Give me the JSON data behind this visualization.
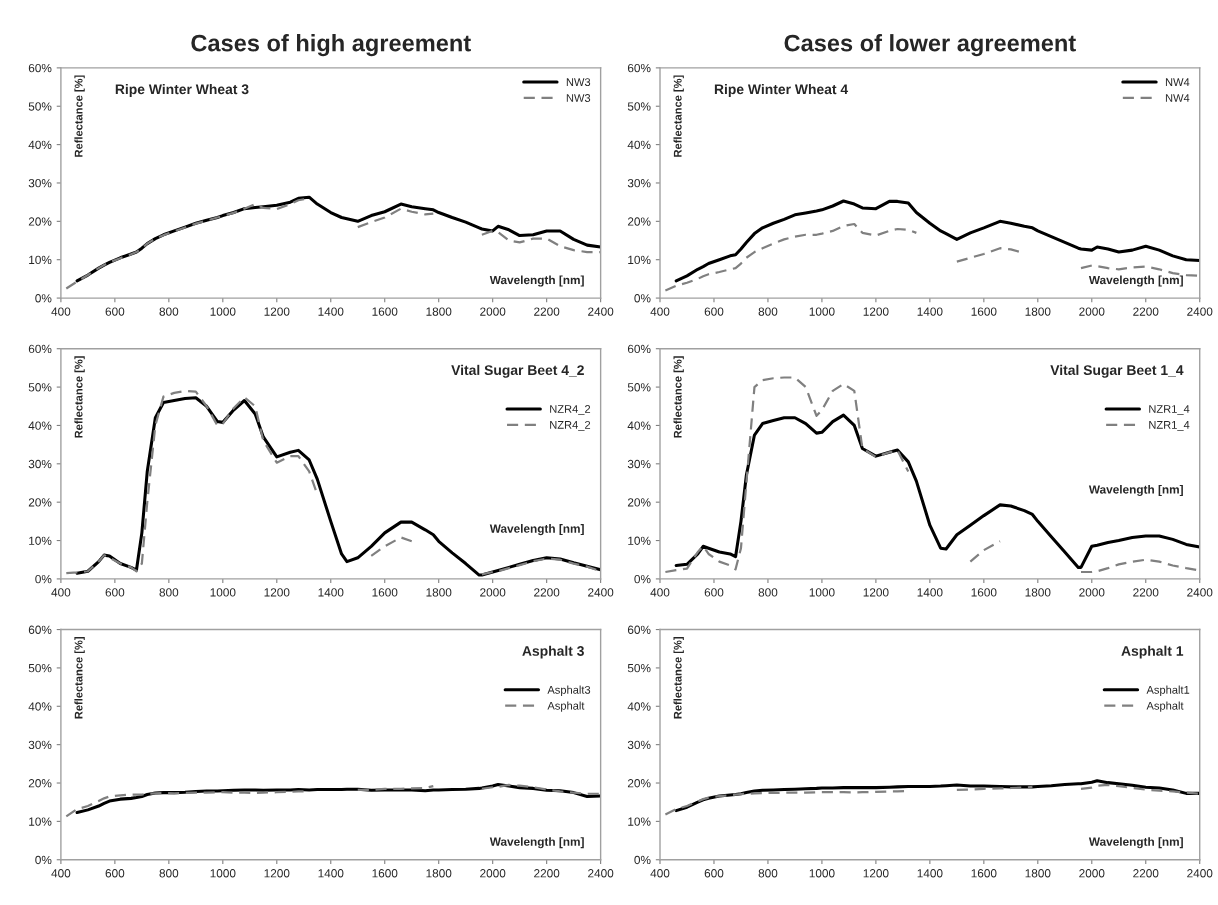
{
  "chart_data": [
    {
      "type": "line",
      "title": "Cases of high agreement",
      "subtitle": "Ripe Winter Wheat 3",
      "xlabel": "Wavelength [nm]",
      "ylabel": "Reflectance [%]",
      "legend": "top right",
      "grid": false,
      "xlim": [
        400,
        2400
      ],
      "ylim": [
        0,
        60
      ],
      "xticks": [
        400,
        600,
        800,
        1000,
        1200,
        1400,
        1600,
        1800,
        2000,
        2200,
        2400
      ],
      "yticks": [
        {
          "value": 0,
          "label": "0%"
        },
        {
          "value": 10,
          "label": "10%"
        },
        {
          "value": 20,
          "label": "20%"
        },
        {
          "value": 30,
          "label": "30%"
        },
        {
          "value": 40,
          "label": "40%"
        },
        {
          "value": 50,
          "label": "50%"
        },
        {
          "value": 60,
          "label": "60%"
        }
      ],
      "x": [
        420,
        460,
        500,
        540,
        560,
        580,
        620,
        660,
        680,
        700,
        720,
        750,
        780,
        820,
        860,
        900,
        940,
        980,
        1000,
        1040,
        1080,
        1120,
        1150,
        1200,
        1250,
        1280,
        1320,
        1350,
        1400,
        1440,
        1460,
        1500,
        1550,
        1600,
        1660,
        1700,
        1750,
        1780,
        1800,
        1850,
        1900,
        1950,
        1960,
        2000,
        2020,
        2060,
        2100,
        2150,
        2200,
        2250,
        2300,
        2350,
        2400
      ],
      "series": [
        {
          "name": "NW3",
          "color": "#000000",
          "line_style": "solid",
          "values": [
            null,
            4.5,
            6,
            7.8,
            8.6,
            9.3,
            10.5,
            11.5,
            12,
            13,
            14.2,
            15.5,
            16.5,
            17.5,
            18.5,
            19.5,
            20.3,
            21,
            21.5,
            22.3,
            23.3,
            23.6,
            23.8,
            24.2,
            25,
            26,
            26.3,
            24.5,
            22.3,
            21,
            20.7,
            20,
            21.5,
            22.5,
            24.5,
            23.8,
            23.3,
            23,
            22.3,
            21,
            19.8,
            18.3,
            18,
            17.5,
            18.7,
            17.8,
            16.3,
            16.5,
            17.5,
            17.5,
            15.3,
            13.8,
            13.3
          ]
        },
        {
          "name": "NW3",
          "color": "#808080",
          "line_style": "dashed",
          "values": [
            2.5,
            4.3,
            6,
            7.8,
            8.6,
            9.3,
            10.4,
            11.4,
            12,
            13,
            14.2,
            15.5,
            16.4,
            17.4,
            18.4,
            19.4,
            20.2,
            21,
            21.4,
            22.2,
            23.3,
            24.5,
            23.5,
            23.2,
            24.5,
            25.5,
            26,
            null,
            null,
            null,
            null,
            18.5,
            19.8,
            21,
            23.3,
            22.5,
            21.8,
            22,
            null,
            null,
            null,
            null,
            16.5,
            17.5,
            17.2,
            15,
            14.5,
            15.5,
            15.5,
            13.5,
            12.5,
            12,
            12
          ]
        }
      ]
    },
    {
      "type": "line",
      "title": "Cases of lower agreement",
      "subtitle": "Ripe Winter Wheat 4",
      "xlabel": "Wavelength [nm]",
      "ylabel": "Reflectance [%]",
      "legend": "top right",
      "grid": false,
      "xlim": [
        400,
        2400
      ],
      "ylim": [
        0,
        60
      ],
      "xticks": [
        400,
        600,
        800,
        1000,
        1200,
        1400,
        1600,
        1800,
        2000,
        2200,
        2400
      ],
      "yticks": [
        {
          "value": 0,
          "label": "0%"
        },
        {
          "value": 10,
          "label": "10%"
        },
        {
          "value": 20,
          "label": "20%"
        },
        {
          "value": 30,
          "label": "30%"
        },
        {
          "value": 40,
          "label": "40%"
        },
        {
          "value": 50,
          "label": "50%"
        },
        {
          "value": 60,
          "label": "60%"
        }
      ],
      "x": [
        420,
        460,
        500,
        540,
        560,
        580,
        620,
        660,
        680,
        700,
        720,
        750,
        780,
        820,
        860,
        900,
        940,
        980,
        1000,
        1040,
        1080,
        1120,
        1150,
        1200,
        1250,
        1280,
        1320,
        1350,
        1400,
        1440,
        1460,
        1500,
        1550,
        1600,
        1660,
        1700,
        1750,
        1780,
        1800,
        1850,
        1900,
        1950,
        1960,
        2000,
        2020,
        2060,
        2100,
        2150,
        2200,
        2250,
        2300,
        2350,
        2400
      ],
      "series": [
        {
          "name": "NW4",
          "color": "#000000",
          "line_style": "solid",
          "values": [
            null,
            4.5,
            5.8,
            7.5,
            8.2,
            9,
            10,
            11,
            11.3,
            12.8,
            14.5,
            16.8,
            18.3,
            19.5,
            20.5,
            21.7,
            22.2,
            22.7,
            23,
            24,
            25.3,
            24.5,
            23.5,
            23.3,
            25.2,
            25.2,
            24.8,
            22.3,
            19.5,
            17.5,
            16.8,
            15.3,
            17,
            18.3,
            20,
            19.5,
            18.7,
            18.3,
            17.5,
            16,
            14.5,
            13,
            12.8,
            12.5,
            13.3,
            12.8,
            12,
            12.5,
            13.5,
            12.5,
            11,
            10,
            9.8
          ]
        },
        {
          "name": "NW4",
          "color": "#808080",
          "line_style": "dashed",
          "values": [
            2,
            3.2,
            4,
            5,
            5.7,
            6.2,
            6.8,
            7.5,
            7.8,
            9,
            10.5,
            12,
            13,
            14.2,
            15.3,
            16,
            16.5,
            16.5,
            16.8,
            17.5,
            18.8,
            19.3,
            17,
            16.3,
            17.5,
            18,
            17.8,
            17,
            null,
            null,
            null,
            9.5,
            10.5,
            11.5,
            13,
            12.7,
            11.7,
            null,
            null,
            null,
            null,
            null,
            7.8,
            8.5,
            8.3,
            7.8,
            7.5,
            8,
            8.2,
            7.5,
            6.5,
            6,
            5.8
          ]
        }
      ]
    },
    {
      "type": "line",
      "subtitle": "Vital Sugar Beet 4_2",
      "xlabel": "Wavelength [nm]",
      "ylabel": "Reflectance [%]",
      "legend": "right",
      "grid": false,
      "xlim": [
        400,
        2400
      ],
      "ylim": [
        0,
        60
      ],
      "xticks": [
        400,
        600,
        800,
        1000,
        1200,
        1400,
        1600,
        1800,
        2000,
        2200,
        2400
      ],
      "yticks": [
        {
          "value": 0,
          "label": "0%"
        },
        {
          "value": 10,
          "label": "10%"
        },
        {
          "value": 20,
          "label": "20%"
        },
        {
          "value": 30,
          "label": "30%"
        },
        {
          "value": 40,
          "label": "40%"
        },
        {
          "value": 50,
          "label": "50%"
        },
        {
          "value": 60,
          "label": "60%"
        }
      ],
      "x": [
        420,
        460,
        500,
        540,
        560,
        580,
        620,
        660,
        680,
        700,
        720,
        750,
        780,
        820,
        860,
        900,
        940,
        980,
        1000,
        1040,
        1080,
        1120,
        1150,
        1200,
        1250,
        1280,
        1320,
        1350,
        1400,
        1440,
        1460,
        1500,
        1550,
        1600,
        1660,
        1700,
        1750,
        1780,
        1800,
        1850,
        1900,
        1950,
        1960,
        2000,
        2020,
        2060,
        2100,
        2150,
        2200,
        2250,
        2300,
        2350,
        2400
      ],
      "series": [
        {
          "name": "NZR4_2",
          "color": "#000000",
          "line_style": "solid",
          "values": [
            null,
            1.5,
            2,
            4.5,
            6.2,
            6,
            4,
            3,
            2.3,
            12,
            28,
            42,
            46,
            46.5,
            47,
            47.2,
            45,
            41,
            40.8,
            44,
            46.5,
            43,
            37,
            31.8,
            33,
            33.5,
            31,
            26,
            15,
            6.5,
            4.5,
            5.5,
            8.5,
            12,
            14.8,
            14.8,
            12.8,
            11.5,
            9.8,
            6.8,
            4,
            1,
            1,
            1.8,
            2.2,
            3,
            3.8,
            4.8,
            5.5,
            5.2,
            4.2,
            3.3,
            2.4
          ]
        },
        {
          "name": "NZR4_2",
          "color": "#808080",
          "line_style": "dashed",
          "values": [
            1.5,
            1.7,
            2,
            4.5,
            6.2,
            5.5,
            4,
            3,
            2,
            4,
            20,
            40,
            47.5,
            48.5,
            49,
            48.8,
            45,
            40,
            40.5,
            44.5,
            47.3,
            45,
            36,
            30.3,
            32,
            32,
            28,
            22,
            null,
            null,
            null,
            null,
            6,
            8.5,
            10.8,
            9.8,
            null,
            null,
            null,
            null,
            null,
            null,
            1.2,
            1.8,
            2,
            2.8,
            3.6,
            4.6,
            5.3,
            5,
            4,
            3.2,
            2
          ]
        }
      ]
    },
    {
      "type": "line",
      "subtitle": "Vital Sugar Beet 1_4",
      "xlabel": "Wavelength [nm]",
      "ylabel": "Reflectance [%]",
      "legend": "right",
      "grid": false,
      "xlim": [
        400,
        2400
      ],
      "ylim": [
        0,
        60
      ],
      "xticks": [
        400,
        600,
        800,
        1000,
        1200,
        1400,
        1600,
        1800,
        2000,
        2200,
        2400
      ],
      "yticks": [
        {
          "value": 0,
          "label": "0%"
        },
        {
          "value": 10,
          "label": "10%"
        },
        {
          "value": 20,
          "label": "20%"
        },
        {
          "value": 30,
          "label": "30%"
        },
        {
          "value": 40,
          "label": "40%"
        },
        {
          "value": 50,
          "label": "50%"
        },
        {
          "value": 60,
          "label": "60%"
        }
      ],
      "x": [
        420,
        460,
        500,
        540,
        560,
        580,
        620,
        660,
        680,
        700,
        720,
        750,
        780,
        820,
        860,
        900,
        940,
        980,
        1000,
        1040,
        1080,
        1120,
        1150,
        1200,
        1250,
        1280,
        1320,
        1350,
        1400,
        1440,
        1460,
        1500,
        1550,
        1600,
        1660,
        1700,
        1750,
        1780,
        1800,
        1850,
        1900,
        1950,
        1960,
        2000,
        2020,
        2060,
        2100,
        2150,
        2200,
        2250,
        2300,
        2350,
        2400
      ],
      "series": [
        {
          "name": "NZR1_4",
          "color": "#000000",
          "line_style": "solid",
          "values": [
            null,
            3.5,
            3.8,
            6.5,
            8.5,
            8,
            7,
            6.5,
            5.8,
            15,
            27,
            37.5,
            40.5,
            41.3,
            42,
            42,
            40.5,
            38,
            38.2,
            41,
            42.7,
            40,
            34,
            32,
            33,
            33.6,
            30.5,
            25.5,
            14,
            8,
            7.8,
            11.5,
            14,
            16.5,
            19.3,
            19,
            17.8,
            16.8,
            15,
            11,
            7,
            3,
            3,
            8.5,
            8.8,
            9.5,
            10,
            10.8,
            11.2,
            11.2,
            10.3,
            9,
            8.3
          ]
        },
        {
          "name": "NZR1_4",
          "color": "#808080",
          "line_style": "dashed",
          "values": [
            1.8,
            2.3,
            2.7,
            7,
            8.5,
            6.5,
            4.5,
            3.5,
            2.5,
            8,
            25,
            50,
            51.8,
            52.3,
            52.5,
            52.5,
            50,
            42.5,
            44,
            49,
            50.8,
            49,
            34,
            31.8,
            33,
            33.5,
            28,
            null,
            null,
            null,
            null,
            null,
            4.5,
            7.5,
            9.8,
            null,
            null,
            null,
            null,
            null,
            null,
            null,
            1.8,
            1.8,
            2,
            2.8,
            3.8,
            4.5,
            5,
            4.5,
            3.5,
            2.8,
            2.2
          ]
        }
      ]
    },
    {
      "type": "line",
      "subtitle": "Asphalt 3",
      "xlabel": "Wavelength [nm]",
      "ylabel": "Reflectance [%]",
      "legend": "right",
      "grid": false,
      "xlim": [
        400,
        2400
      ],
      "ylim": [
        0,
        60
      ],
      "xticks": [
        400,
        600,
        800,
        1000,
        1200,
        1400,
        1600,
        1800,
        2000,
        2200,
        2400
      ],
      "yticks": [
        {
          "value": 0,
          "label": "0%"
        },
        {
          "value": 10,
          "label": "10%"
        },
        {
          "value": 20,
          "label": "20%"
        },
        {
          "value": 30,
          "label": "30%"
        },
        {
          "value": 40,
          "label": "40%"
        },
        {
          "value": 50,
          "label": "50%"
        },
        {
          "value": 60,
          "label": "60%"
        }
      ],
      "x": [
        420,
        460,
        500,
        540,
        560,
        580,
        620,
        660,
        680,
        700,
        720,
        750,
        780,
        820,
        860,
        900,
        940,
        980,
        1000,
        1040,
        1080,
        1120,
        1150,
        1200,
        1250,
        1280,
        1320,
        1350,
        1400,
        1440,
        1460,
        1500,
        1550,
        1600,
        1660,
        1700,
        1750,
        1780,
        1800,
        1850,
        1900,
        1950,
        1960,
        2000,
        2020,
        2060,
        2100,
        2150,
        2200,
        2250,
        2300,
        2350,
        2400
      ],
      "series": [
        {
          "name": "Asphalt3",
          "color": "#000000",
          "line_style": "solid",
          "values": [
            null,
            12.3,
            13,
            14,
            14.7,
            15.3,
            15.8,
            16,
            16.2,
            16.5,
            17,
            17.4,
            17.5,
            17.5,
            17.6,
            17.8,
            17.9,
            17.9,
            18,
            18.1,
            18.2,
            18.2,
            18.1,
            18.2,
            18.2,
            18.3,
            18.2,
            18.3,
            18.3,
            18.3,
            18.4,
            18.4,
            18.1,
            18.2,
            18.2,
            18.2,
            18,
            18.2,
            18.2,
            18.3,
            18.4,
            18.6,
            18.7,
            19.2,
            19.6,
            19.2,
            18.8,
            18.6,
            18.1,
            18,
            17.5,
            16.5,
            16.6
          ]
        },
        {
          "name": "Asphalt",
          "color": "#808080",
          "line_style": "dashed",
          "values": [
            11.3,
            13.2,
            14,
            15.3,
            16,
            16.5,
            16.8,
            17,
            17,
            17,
            17.2,
            17.3,
            17.4,
            17.3,
            17.4,
            17.5,
            17.5,
            17.6,
            17.6,
            17.5,
            17.5,
            17.4,
            17.5,
            17.6,
            17.7,
            17.8,
            17.9,
            null,
            null,
            null,
            null,
            18.2,
            18.2,
            18.5,
            18.5,
            18.6,
            18.7,
            19.2,
            null,
            null,
            null,
            null,
            18.5,
            18.9,
            19,
            19.5,
            19.3,
            18.9,
            18.3,
            17.8,
            17.5,
            17.2,
            17.2
          ]
        }
      ]
    },
    {
      "type": "line",
      "subtitle": "Asphalt 1",
      "xlabel": "Wavelength [nm]",
      "ylabel": "Reflectance [%]",
      "legend": "right",
      "grid": false,
      "xlim": [
        400,
        2400
      ],
      "ylim": [
        0,
        60
      ],
      "xticks": [
        400,
        600,
        800,
        1000,
        1200,
        1400,
        1600,
        1800,
        2000,
        2200,
        2400
      ],
      "yticks": [
        {
          "value": 0,
          "label": "0%"
        },
        {
          "value": 10,
          "label": "10%"
        },
        {
          "value": 20,
          "label": "20%"
        },
        {
          "value": 30,
          "label": "30%"
        },
        {
          "value": 40,
          "label": "40%"
        },
        {
          "value": 50,
          "label": "50%"
        },
        {
          "value": 60,
          "label": "60%"
        }
      ],
      "x": [
        420,
        460,
        500,
        540,
        560,
        580,
        620,
        660,
        680,
        700,
        720,
        750,
        780,
        820,
        860,
        900,
        940,
        980,
        1000,
        1040,
        1080,
        1120,
        1150,
        1200,
        1250,
        1280,
        1320,
        1350,
        1400,
        1440,
        1460,
        1500,
        1550,
        1600,
        1660,
        1700,
        1750,
        1780,
        1800,
        1850,
        1900,
        1950,
        1960,
        2000,
        2020,
        2060,
        2100,
        2150,
        2200,
        2250,
        2300,
        2350,
        2400
      ],
      "series": [
        {
          "name": "Asphalt1",
          "color": "#000000",
          "line_style": "solid",
          "values": [
            null,
            12.8,
            13.7,
            15,
            15.6,
            16,
            16.6,
            16.9,
            17,
            17.2,
            17.5,
            17.9,
            18.1,
            18.2,
            18.3,
            18.4,
            18.5,
            18.6,
            18.7,
            18.7,
            18.8,
            18.8,
            18.8,
            18.8,
            18.9,
            19,
            19.1,
            19.1,
            19.1,
            19.2,
            19.3,
            19.5,
            19.2,
            19.2,
            19.1,
            19,
            19,
            19,
            19.1,
            19.3,
            19.6,
            19.8,
            19.8,
            20.2,
            20.6,
            20.1,
            19.8,
            19.4,
            18.9,
            18.7,
            18.2,
            17.3,
            17.3
          ]
        },
        {
          "name": "Asphalt",
          "color": "#808080",
          "line_style": "dashed",
          "values": [
            11.8,
            13.2,
            14,
            15.2,
            15.8,
            16.2,
            16.6,
            16.8,
            17,
            17.1,
            17.2,
            17.3,
            17.4,
            17.4,
            17.5,
            17.5,
            17.5,
            17.6,
            17.6,
            17.6,
            17.6,
            17.5,
            17.6,
            17.7,
            17.8,
            17.8,
            17.9,
            null,
            null,
            null,
            null,
            18.2,
            18.3,
            18.5,
            18.6,
            18.7,
            18.8,
            19,
            null,
            null,
            null,
            null,
            18.5,
            18.8,
            19.3,
            19.5,
            19.2,
            18.7,
            18.3,
            18,
            17.8,
            17.5,
            17.2
          ]
        }
      ]
    }
  ]
}
